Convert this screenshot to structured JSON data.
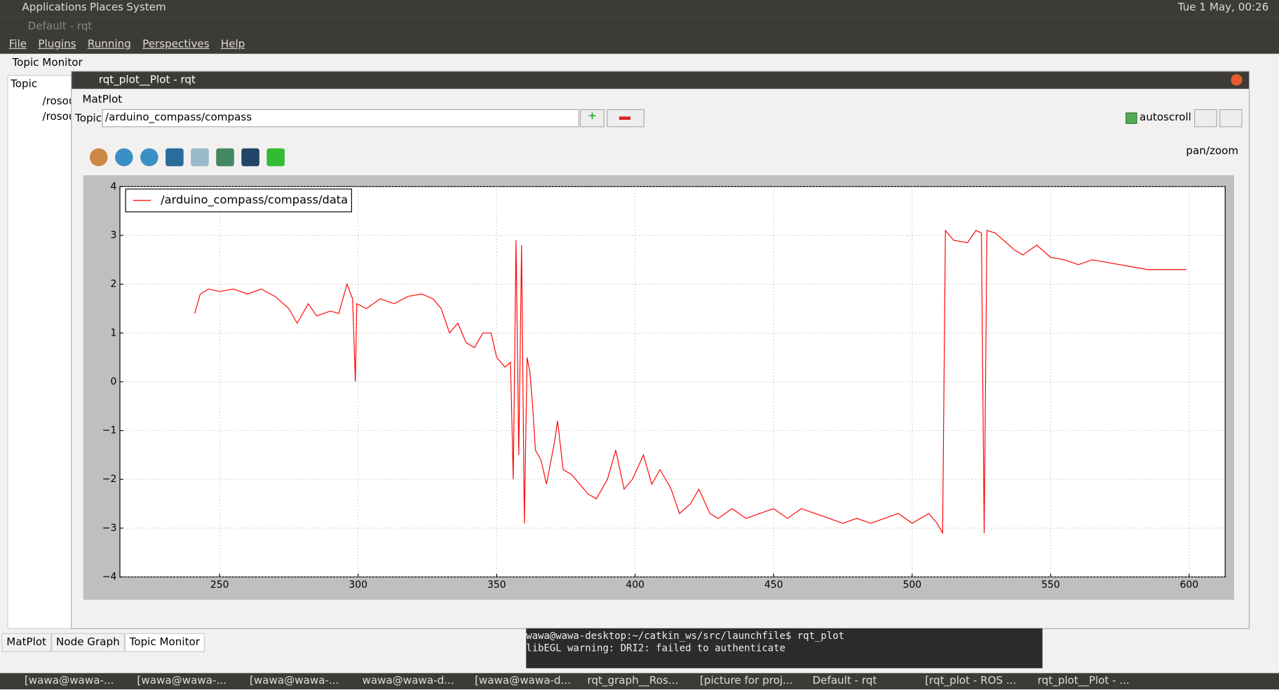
{
  "top_panel": {
    "menus": [
      "Applications",
      "Places",
      "System"
    ],
    "clock": "Tue 1 May, 00:26"
  },
  "main_window": {
    "title": "Default - rqt",
    "menu": [
      "File",
      "Plugins",
      "Running",
      "Perspectives",
      "Help"
    ],
    "dock_title": "Topic Monitor",
    "column": "Topic",
    "rows": [
      "/rosou",
      "/rosou"
    ],
    "tabs": [
      "MatPlot",
      "Node Graph",
      "Topic Monitor"
    ]
  },
  "plot_window": {
    "title": "rqt_plot__Plot - rqt",
    "plugin": "MatPlot",
    "topic_label": "Topic",
    "topic_value": "/arduino_compass/compass",
    "autoscroll": "autoscroll",
    "mode": "pan/zoom"
  },
  "chart_data": {
    "type": "line",
    "x": [
      241,
      243,
      246,
      250,
      255,
      260,
      265,
      270,
      275,
      278,
      282,
      285,
      290,
      293,
      296,
      298,
      299,
      299.5,
      303,
      308,
      313,
      318,
      323,
      327,
      330,
      333,
      336,
      339,
      342,
      345,
      348,
      350,
      353,
      355,
      356,
      357,
      358,
      359,
      360,
      361,
      362,
      363,
      364,
      366,
      368,
      371,
      372,
      374,
      377,
      380,
      383,
      386,
      390,
      393,
      396,
      399,
      403,
      406,
      409,
      413,
      416,
      420,
      423,
      427,
      430,
      435,
      440,
      445,
      450,
      455,
      460,
      465,
      470,
      475,
      480,
      485,
      490,
      495,
      500,
      503,
      506,
      509,
      511,
      512,
      515,
      520,
      523,
      525,
      526,
      527,
      530,
      533,
      537,
      540,
      545,
      550,
      555,
      560,
      565,
      570,
      575,
      580,
      585,
      590,
      595,
      599
    ],
    "series": [
      {
        "name": "/arduino_compass/compass/data",
        "color": "#ff0000",
        "values": [
          1.4,
          1.8,
          1.9,
          1.85,
          1.9,
          1.8,
          1.9,
          1.75,
          1.5,
          1.2,
          1.6,
          1.35,
          1.45,
          1.4,
          2.0,
          1.7,
          0.0,
          1.6,
          1.5,
          1.7,
          1.6,
          1.75,
          1.8,
          1.7,
          1.5,
          1.0,
          1.2,
          0.8,
          0.7,
          1.0,
          1.0,
          0.5,
          0.3,
          0.4,
          -2.0,
          2.9,
          -1.5,
          2.8,
          -2.9,
          0.5,
          0.2,
          -0.5,
          -1.4,
          -1.6,
          -2.1,
          -1.2,
          -0.8,
          -1.8,
          -1.9,
          -2.1,
          -2.3,
          -2.4,
          -2.0,
          -1.4,
          -2.2,
          -2.0,
          -1.5,
          -2.1,
          -1.8,
          -2.2,
          -2.7,
          -2.5,
          -2.2,
          -2.7,
          -2.8,
          -2.6,
          -2.8,
          -2.7,
          -2.6,
          -2.8,
          -2.6,
          -2.7,
          -2.8,
          -2.9,
          -2.8,
          -2.9,
          -2.8,
          -2.7,
          -2.9,
          -2.8,
          -2.7,
          -2.9,
          -3.1,
          3.1,
          2.9,
          2.85,
          3.1,
          3.05,
          -3.1,
          3.1,
          3.05,
          2.9,
          2.7,
          2.6,
          2.8,
          2.55,
          2.5,
          2.4,
          2.5,
          2.45,
          2.4,
          2.35,
          2.3,
          2.3,
          2.3,
          2.3
        ]
      }
    ],
    "xlim": [
      214,
      613
    ],
    "ylim": [
      -4,
      4
    ],
    "xticks": [
      250,
      300,
      350,
      400,
      450,
      500,
      550,
      600
    ],
    "yticks": [
      {
        "value": -4,
        "label": "−4"
      },
      {
        "value": -3,
        "label": "−3"
      },
      {
        "value": -2,
        "label": "−2"
      },
      {
        "value": -1,
        "label": "−1"
      },
      0,
      1,
      2,
      3,
      4
    ],
    "grid": true,
    "legend": "upper left"
  },
  "terminal": {
    "lines": [
      "wawa@wawa-desktop:~/catkin_ws/src/launchfile$ rqt_plot",
      "libEGL warning: DRI2: failed to authenticate"
    ]
  },
  "taskbar": [
    "[wawa@wawa-...",
    "[wawa@wawa-...",
    "[wawa@wawa-...",
    "wawa@wawa-d...",
    "[wawa@wawa-d...",
    "rqt_graph__Ros...",
    "[picture for proj...",
    "Default - rqt",
    "[rqt_plot - ROS ...",
    "rqt_plot__Plot - ..."
  ]
}
